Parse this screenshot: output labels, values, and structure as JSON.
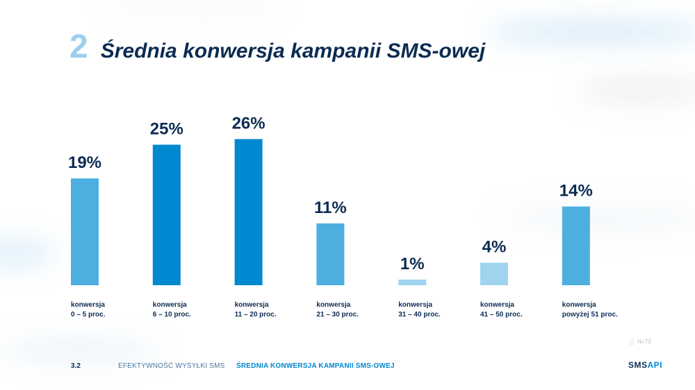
{
  "title": {
    "number": "2",
    "text": "Średnia konwersja kampanii SMS-owej"
  },
  "chart_data": {
    "type": "bar",
    "title": "Średnia konwersja kampanii SMS-owej",
    "unit": "%",
    "ylim": [
      0,
      30
    ],
    "grid": false,
    "categories": [
      {
        "line1": "konwersja",
        "line2": "0 – 5 proc."
      },
      {
        "line1": "konwersja",
        "line2": "6 – 10 proc."
      },
      {
        "line1": "konwersja",
        "line2": "11 – 20 proc."
      },
      {
        "line1": "konwersja",
        "line2": "21 – 30 proc."
      },
      {
        "line1": "konwersja",
        "line2": "31 – 40 proc."
      },
      {
        "line1": "konwersja",
        "line2": "41 – 50 proc."
      },
      {
        "line1": "konwersja",
        "line2": "powyżej 51 proc."
      }
    ],
    "values": [
      19,
      25,
      26,
      11,
      1,
      4,
      14
    ],
    "value_labels": [
      "19%",
      "25%",
      "26%",
      "11%",
      "1%",
      "4%",
      "14%"
    ],
    "colors": [
      "#4dafe0",
      "#0089d0",
      "#0089d0",
      "#4dafe0",
      "#9fd3ef",
      "#9fd3ef",
      "#4dafe0"
    ],
    "label_color": "#0c2b52"
  },
  "footnote": "N=73",
  "footer": {
    "page": "3.2",
    "section": "EFEKTYWNOŚĆ WYSYŁKI SMS",
    "current": "ŚREDNIA KONWERSJA KAMPANII SMS-OWEJ"
  },
  "logo": {
    "part1": "SMS",
    "part2": "API"
  }
}
